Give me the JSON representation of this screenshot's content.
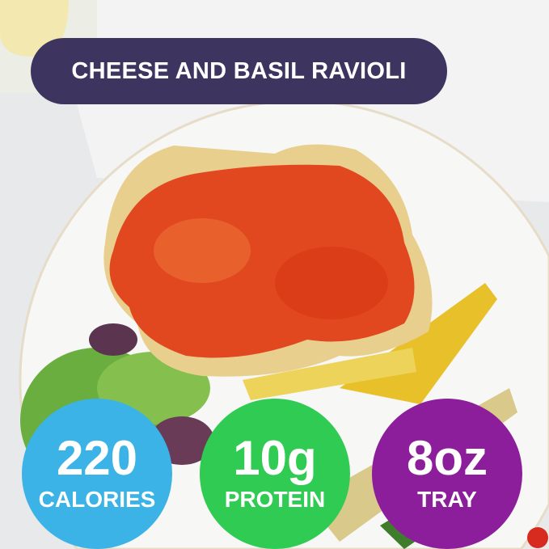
{
  "title": "CHEESE AND BASIL RAVIOLI",
  "badges": [
    {
      "value": "220",
      "label": "CALORIES",
      "color": "#3bb3e6"
    },
    {
      "value": "10g",
      "label": "PROTEIN",
      "color": "#2fcb52"
    },
    {
      "value": "8oz",
      "label": "TRAY",
      "color": "#8d1e9b"
    }
  ],
  "colors": {
    "title_bg": "#3d3560",
    "plate": "#f7f7f6",
    "sauce": "#e2481f",
    "greens": "#5fa83a",
    "squash": "#e8c02a"
  }
}
